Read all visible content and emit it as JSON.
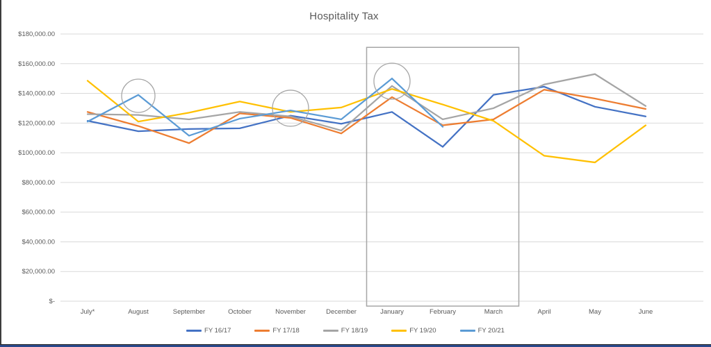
{
  "title": "Hospitality Tax",
  "chart_data": {
    "type": "line",
    "title": "Hospitality Tax",
    "xlabel": "",
    "ylabel": "",
    "grid": true,
    "legend_position": "bottom",
    "categories": [
      "July*",
      "August",
      "September",
      "October",
      "November",
      "December",
      "January",
      "February",
      "March",
      "April",
      "May",
      "June"
    ],
    "y_axis": {
      "min": 0,
      "max": 180000,
      "step": 20000,
      "tick_labels": [
        "$-",
        "$20,000.00",
        "$40,000.00",
        "$60,000.00",
        "$80,000.00",
        "$100,000.00",
        "$120,000.00",
        "$140,000.00",
        "$160,000.00",
        "$180,000.00"
      ]
    },
    "series": [
      {
        "name": "FY 16/17",
        "color": "#4472C4",
        "values": [
          121500,
          114500,
          116000,
          116500,
          125000,
          119500,
          127500,
          104000,
          139000,
          144500,
          131000,
          124500
        ]
      },
      {
        "name": "FY 17/18",
        "color": "#ED7D31",
        "values": [
          127500,
          118000,
          106500,
          126500,
          123500,
          113000,
          137500,
          118500,
          122500,
          142500,
          136500,
          129500
        ]
      },
      {
        "name": "FY 18/19",
        "color": "#A5A5A5",
        "values": [
          126000,
          125500,
          122500,
          127500,
          124500,
          115000,
          145000,
          122500,
          130000,
          146000,
          153000,
          131500
        ]
      },
      {
        "name": "FY 19/20",
        "color": "#FFC000",
        "values": [
          148500,
          121000,
          127000,
          134500,
          127500,
          130500,
          143000,
          132500,
          121500,
          98000,
          93500,
          118500
        ]
      },
      {
        "name": "FY 20/21",
        "color": "#5B9BD5",
        "values": [
          121000,
          139000,
          111500,
          123000,
          128500,
          122500,
          150000,
          117500,
          null,
          null,
          null,
          null
        ]
      }
    ],
    "annotations": {
      "circles": [
        {
          "category": "August",
          "value": 138400,
          "radius": 24
        },
        {
          "category": "November",
          "value": 130000,
          "radius": 26
        },
        {
          "category": "January",
          "value": 148200,
          "radius": 26
        }
      ],
      "rect": {
        "from_category": "January",
        "to_category": "March",
        "top_value": 171000,
        "bottom_value": -3300
      }
    },
    "gridline_color": "#D9D9D9",
    "annotation_color": "#A6A6A6",
    "axis_text_color": "#595959"
  }
}
